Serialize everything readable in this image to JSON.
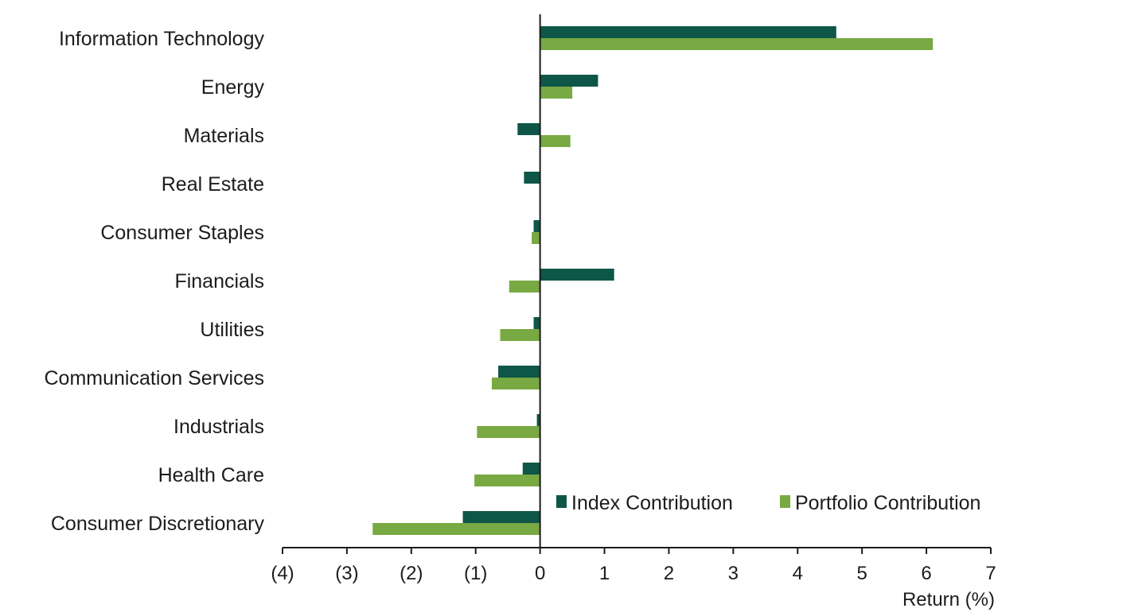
{
  "chart_data": {
    "type": "bar",
    "orientation": "horizontal",
    "categories": [
      "Information Technology",
      "Energy",
      "Materials",
      "Real Estate",
      "Consumer Staples",
      "Financials",
      "Utilities",
      "Communication Services",
      "Industrials",
      "Health Care",
      "Consumer Discretionary"
    ],
    "series": [
      {
        "name": "Index Contribution",
        "color": "#0e5648",
        "values": [
          4.6,
          0.9,
          -0.35,
          -0.25,
          -0.1,
          1.15,
          -0.1,
          -0.65,
          -0.05,
          -0.27,
          -1.2
        ]
      },
      {
        "name": "Portfolio Contribution",
        "color": "#78a942",
        "values": [
          6.1,
          0.5,
          0.47,
          0,
          -0.13,
          -0.48,
          -0.62,
          -0.75,
          -0.98,
          -1.02,
          -2.6
        ]
      }
    ],
    "xlim": [
      -4,
      7
    ],
    "x_ticks": [
      -4,
      -3,
      -2,
      -1,
      0,
      1,
      2,
      3,
      4,
      5,
      6,
      7
    ],
    "x_tick_labels": [
      "(4)",
      "(3)",
      "(2)",
      "(1)",
      "0",
      "1",
      "2",
      "3",
      "4",
      "5",
      "6",
      "7"
    ],
    "xlabel": "Return (%)",
    "ylabel": "",
    "title": "",
    "grid": false,
    "legend": {
      "position": "bottom-right",
      "entries": [
        "Index Contribution",
        "Portfolio Contribution"
      ]
    },
    "axis_color": "#1c1c1c"
  }
}
